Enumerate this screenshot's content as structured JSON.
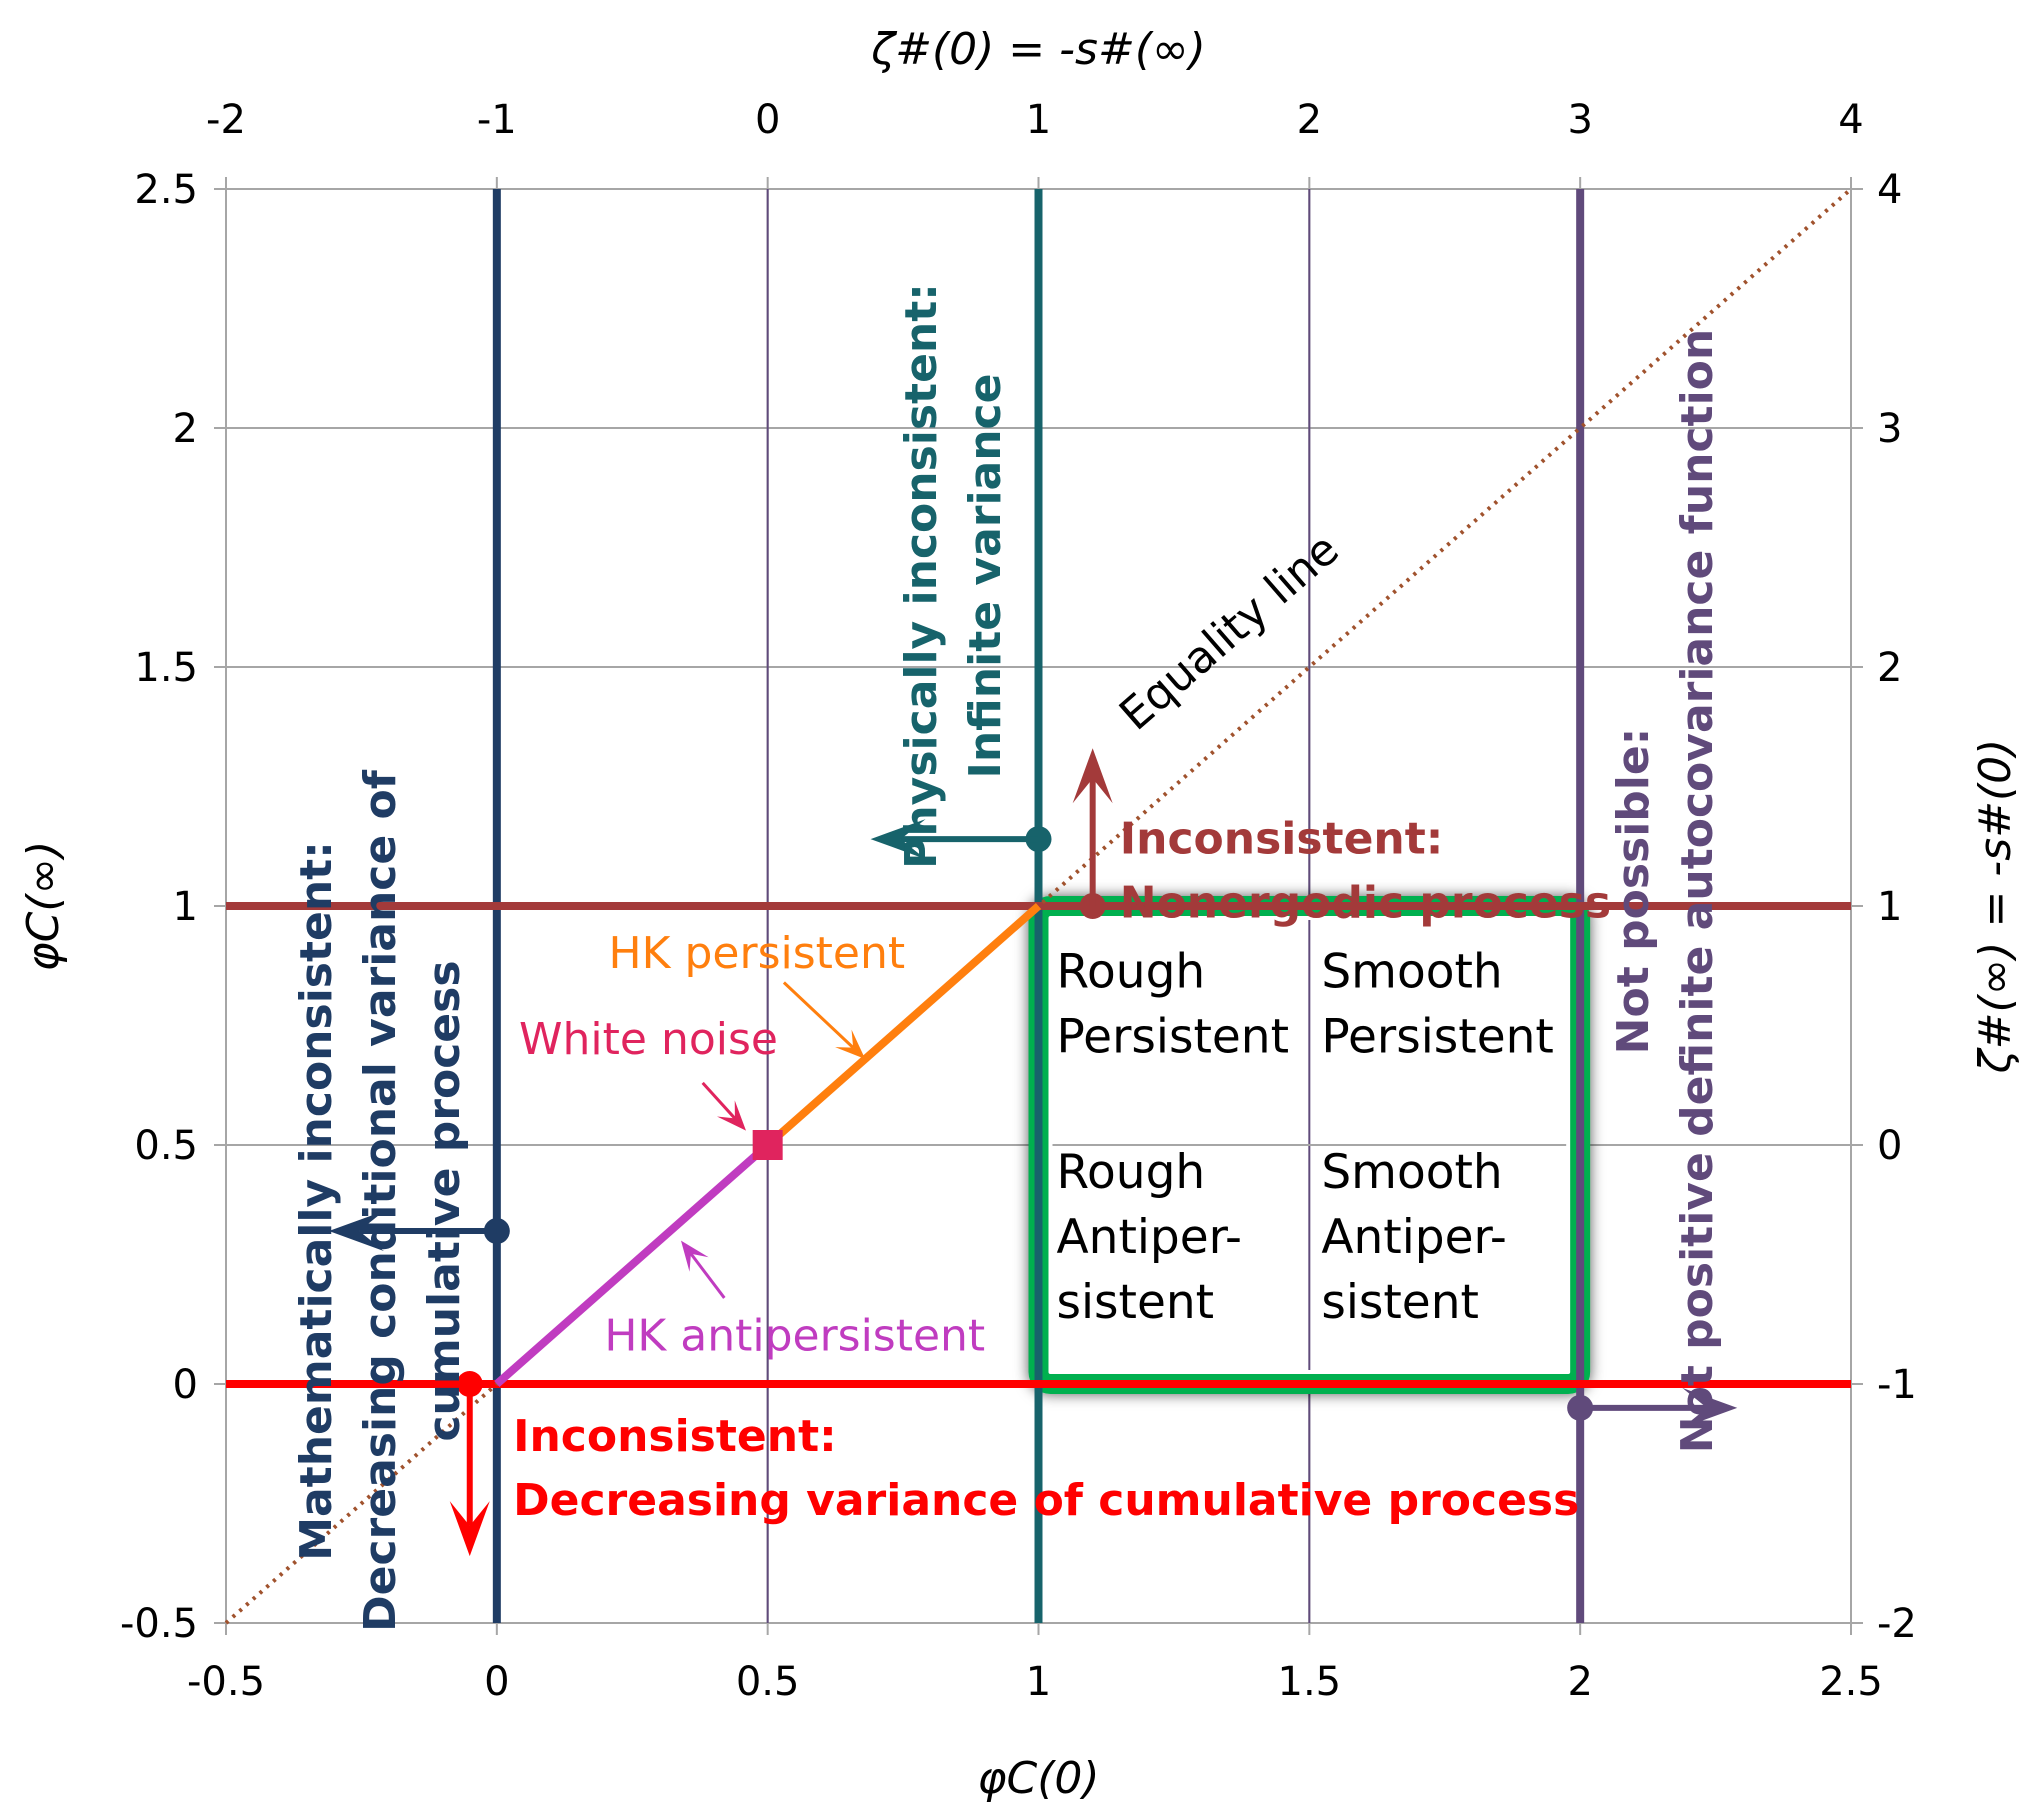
{
  "chart_data": {
    "type": "line",
    "x": {
      "label": "φC(0)",
      "range": [
        -0.5,
        2.5
      ],
      "ticks": [
        -0.5,
        0,
        0.5,
        1,
        1.5,
        2,
        2.5
      ],
      "tick_labels": [
        "-0.5",
        "0",
        "0.5",
        "1",
        "1.5",
        "2",
        "2.5"
      ]
    },
    "y": {
      "label": "φC(∞)",
      "range": [
        -0.5,
        2.5
      ],
      "ticks": [
        -0.5,
        0,
        0.5,
        1,
        1.5,
        2,
        2.5
      ],
      "tick_labels": [
        "-0.5",
        "0",
        "0.5",
        "1",
        "1.5",
        "2",
        "2.5"
      ]
    },
    "x2": {
      "label": "ζ#(0) = -s#(∞)",
      "range": [
        -2,
        4
      ],
      "ticks": [
        -2,
        -1,
        0,
        1,
        2,
        3,
        4
      ],
      "tick_labels": [
        "-2",
        "-1",
        "0",
        "1",
        "2",
        "3",
        "4"
      ]
    },
    "y2": {
      "label": "ζ#(∞) = -s#(0)",
      "range": [
        -2,
        4
      ],
      "ticks": [
        -2,
        -1,
        0,
        1,
        2,
        3,
        4
      ],
      "tick_labels": [
        "-2",
        "-1",
        "0",
        "1",
        "2",
        "3",
        "4"
      ]
    },
    "grid": true,
    "boundaries": [
      {
        "name": "mathematical-bound",
        "orientation": "vertical",
        "at": 0,
        "color": "#1f3c64"
      },
      {
        "name": "physical-bound",
        "orientation": "vertical",
        "at": 1,
        "color": "#17636b"
      },
      {
        "name": "positive-definite-bound",
        "orientation": "vertical",
        "at": 2,
        "color": "#604a7b"
      },
      {
        "name": "ergodic-bound",
        "orientation": "horizontal",
        "at": 1,
        "color": "#a33a3a"
      },
      {
        "name": "variance-bound",
        "orientation": "horizontal",
        "at": 0,
        "color": "#ff0000"
      }
    ],
    "series": [
      {
        "name": "Equality line",
        "style": "dotted",
        "color": "#a0522d",
        "points": [
          [
            -0.5,
            -0.5
          ],
          [
            2.5,
            2.5
          ]
        ]
      },
      {
        "name": "HK antipersistent",
        "color": "#c03cc0",
        "points": [
          [
            0,
            0
          ],
          [
            0.5,
            0.5
          ]
        ]
      },
      {
        "name": "HK persistent",
        "color": "#ff7f0e",
        "points": [
          [
            0.5,
            0.5
          ],
          [
            1,
            1
          ]
        ]
      },
      {
        "name": "White noise",
        "color": "#e0245e",
        "points": [
          [
            0.5,
            0.5
          ]
        ]
      }
    ],
    "region": {
      "x": [
        1,
        2
      ],
      "y": [
        0,
        1
      ],
      "color": "#00b050"
    },
    "quadrants": [
      {
        "lines": [
          "Rough",
          "Persistent"
        ]
      },
      {
        "lines": [
          "Smooth",
          "Persistent"
        ]
      },
      {
        "lines": [
          "Rough",
          "Antiper-",
          "sistent"
        ]
      },
      {
        "lines": [
          "Smooth",
          "Antiper-",
          "sistent"
        ]
      }
    ],
    "annotations": {
      "equality": "Equality line",
      "hk_persistent": "HK persistent",
      "white_noise": "White noise",
      "hk_antipersistent": "HK antipersistent",
      "mathematical": [
        "Mathematically inconsistent:",
        "Decreasing conditional variance of",
        "cumulative process"
      ],
      "physical": [
        "Physically inconsistent:",
        "Infinite variance"
      ],
      "nonergodic": [
        "Inconsistent:",
        "Nonergodic process"
      ],
      "decreasing_variance": [
        "Inconsistent:",
        "Decreasing variance of cumulative process"
      ],
      "not_possible": [
        "Not possible:",
        "Not positive definite autocovariance function"
      ]
    }
  },
  "colors": {
    "grid": "#a6a6a6",
    "navy": "#1f3c64",
    "teal": "#17636b",
    "purple": "#604a7b",
    "brick": "#a33a3a",
    "red": "#ff0000",
    "orange": "#ff7f0e",
    "magenta": "#c03cc0",
    "crimson": "#e0245e",
    "green": "#00b050",
    "equality": "#a0522d"
  }
}
